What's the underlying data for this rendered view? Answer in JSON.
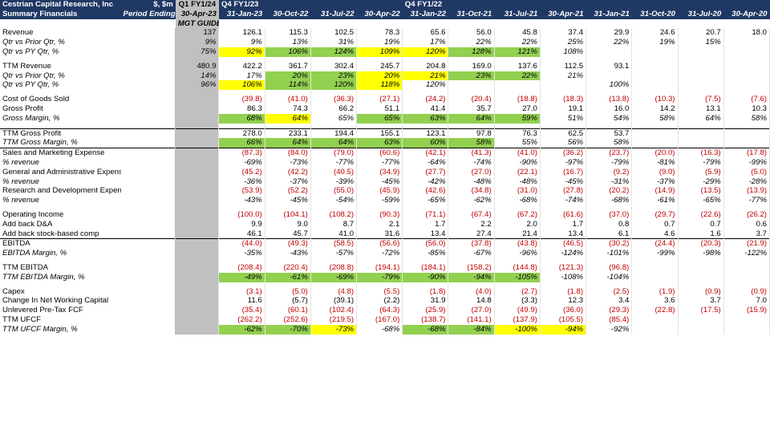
{
  "header": {
    "company": "Cestrian Capital Research, Inc",
    "units": "$, $m",
    "guide_quarter": "Q1 FY1/24",
    "q4_fy23": "Q4 FY1/23",
    "q4_fy22": "Q4 FY1/22",
    "subtitle": "Summary Financials",
    "period_label": "Period Ending",
    "mgt_guide": "MGT GUIDE",
    "dates": [
      "30-Apr-23",
      "31-Jan-23",
      "30-Oct-22",
      "31-Jul-22",
      "30-Apr-22",
      "31-Jan-22",
      "31-Oct-21",
      "31-Jul-21",
      "30-Apr-21",
      "31-Jan-21",
      "31-Oct-20",
      "31-Jul-20",
      "30-Apr-20"
    ]
  },
  "rows": [
    {
      "label": "Revenue",
      "cells": [
        "137",
        "126.1",
        "115.3",
        "102.5",
        "78.3",
        "65.6",
        "56.0",
        "45.8",
        "37.4",
        "29.9",
        "24.6",
        "20.7",
        "18.0"
      ]
    },
    {
      "label": "Qtr vs Prior Qtr, %",
      "italic": true,
      "cells": [
        "9%",
        "9%",
        "13%",
        "31%",
        "19%",
        "17%",
        "22%",
        "22%",
        "25%",
        "22%",
        "19%",
        "15%",
        ""
      ]
    },
    {
      "label": "Qtr vs PY Qtr, %",
      "italic": true,
      "cells": [
        "75%",
        "92%",
        "106%",
        "124%",
        "109%",
        "120%",
        "128%",
        "121%",
        "108%",
        "",
        "",
        "",
        ""
      ],
      "hl": [
        "",
        "y",
        "g",
        "g",
        "y",
        "y",
        "g",
        "g",
        "",
        "",
        "",
        "",
        ""
      ]
    },
    {
      "spacer": true
    },
    {
      "label": "TTM Revenue",
      "cells": [
        "480.9",
        "422.2",
        "361.7",
        "302.4",
        "245.7",
        "204.8",
        "169.0",
        "137.6",
        "112.5",
        "93.1",
        "",
        "",
        ""
      ]
    },
    {
      "label": "Qtr vs Prior Qtr, %",
      "italic": true,
      "cells": [
        "14%",
        "17%",
        "20%",
        "23%",
        "20%",
        "21%",
        "23%",
        "22%",
        "21%",
        "",
        "",
        "",
        ""
      ],
      "hl": [
        "",
        "",
        "g",
        "g",
        "y",
        "y",
        "g",
        "g",
        "",
        "",
        "",
        "",
        ""
      ]
    },
    {
      "label": "Qtr vs PY Qtr, %",
      "italic": true,
      "cells": [
        "96%",
        "106%",
        "114%",
        "120%",
        "118%",
        "120%",
        "",
        "",
        "",
        "100%",
        "",
        "",
        ""
      ],
      "hl": [
        "",
        "y",
        "g",
        "g",
        "y",
        "",
        "",
        "",
        "",
        "",
        "",
        "",
        ""
      ]
    },
    {
      "spacer": true
    },
    {
      "label": "Cost of Goods Sold",
      "cells": [
        "(39.8)",
        "(41.0)",
        "(36.3)",
        "(27.1)",
        "(24.2)",
        "(20.4)",
        "(18.8)",
        "(18.3)",
        "(13.8)",
        "(10.3)",
        "(7.5)",
        "(7.6)"
      ],
      "neg": true,
      "noguide": true
    },
    {
      "label": "Gross Profit",
      "cells": [
        "86.3",
        "74.3",
        "66.2",
        "51.1",
        "41.4",
        "35.7",
        "27.0",
        "19.1",
        "16.0",
        "14.2",
        "13.1",
        "10.3"
      ],
      "noguide": true
    },
    {
      "label": "Gross Margin, %",
      "italic": true,
      "cells": [
        "68%",
        "64%",
        "65%",
        "65%",
        "63%",
        "64%",
        "59%",
        "51%",
        "54%",
        "58%",
        "64%",
        "58%"
      ],
      "hl": [
        "g",
        "y",
        "",
        "g",
        "g",
        "g",
        "g",
        "",
        "",
        "",
        "",
        ""
      ],
      "noguide": true
    },
    {
      "spacer": true
    },
    {
      "label": "TTM Gross Profit",
      "cells": [
        "278.0",
        "233.1",
        "194.4",
        "155.1",
        "123.1",
        "97.8",
        "76.3",
        "62.5",
        "53.7",
        "",
        "",
        ""
      ],
      "noguide": true,
      "top": true
    },
    {
      "label": "TTM Gross Margin, %",
      "italic": true,
      "cells": [
        "66%",
        "64%",
        "64%",
        "63%",
        "60%",
        "58%",
        "55%",
        "56%",
        "58%",
        "",
        "",
        ""
      ],
      "hl": [
        "g",
        "g",
        "g",
        "g",
        "g",
        "g",
        "",
        "",
        "",
        "",
        "",
        ""
      ],
      "noguide": true
    },
    {
      "label": "Sales and Marketing Expense",
      "cells": [
        "(87.3)",
        "(84.0)",
        "(79.0)",
        "(60.6)",
        "(42.1)",
        "(41.3)",
        "(41.0)",
        "(36.2)",
        "(23.7)",
        "(20.0)",
        "(16.3)",
        "(17.8)"
      ],
      "neg": true,
      "noguide": true,
      "top": true
    },
    {
      "label": "% revenue",
      "italic": true,
      "cells": [
        "-69%",
        "-73%",
        "-77%",
        "-77%",
        "-64%",
        "-74%",
        "-90%",
        "-97%",
        "-79%",
        "-81%",
        "-79%",
        "-99%"
      ],
      "noguide": true
    },
    {
      "label": "General and Administrative Expense",
      "cells": [
        "(45.2)",
        "(42.2)",
        "(40.5)",
        "(34.9)",
        "(27.7)",
        "(27.0)",
        "(22.1)",
        "(16.7)",
        "(9.2)",
        "(9.0)",
        "(5.9)",
        "(5.0)"
      ],
      "neg": true,
      "noguide": true
    },
    {
      "label": "% revenue",
      "italic": true,
      "cells": [
        "-36%",
        "-37%",
        "-39%",
        "-45%",
        "-42%",
        "-48%",
        "-48%",
        "-45%",
        "-31%",
        "-37%",
        "-29%",
        "-28%"
      ],
      "noguide": true
    },
    {
      "label": "Research and Development Expense",
      "cells": [
        "(53.9)",
        "(52.2)",
        "(55.0)",
        "(45.9)",
        "(42.6)",
        "(34.8)",
        "(31.0)",
        "(27.8)",
        "(20.2)",
        "(14.9)",
        "(13.5)",
        "(13.9)"
      ],
      "neg": true,
      "noguide": true
    },
    {
      "label": "% revenue",
      "italic": true,
      "cells": [
        "-43%",
        "-45%",
        "-54%",
        "-59%",
        "-65%",
        "-62%",
        "-68%",
        "-74%",
        "-68%",
        "-61%",
        "-65%",
        "-77%"
      ],
      "noguide": true
    },
    {
      "spacer": true
    },
    {
      "label": "Operating Income",
      "cells": [
        "(100.0)",
        "(104.1)",
        "(108.2)",
        "(90.3)",
        "(71.1)",
        "(67.4)",
        "(67.2)",
        "(61.6)",
        "(37.0)",
        "(29.7)",
        "(22.6)",
        "(26.2)"
      ],
      "neg": true,
      "noguide": true
    },
    {
      "label": "Add back D&A",
      "cells": [
        "9.9",
        "9.0",
        "8.7",
        "2.1",
        "1.7",
        "2.2",
        "2.0",
        "1.7",
        "0.8",
        "0.7",
        "0.7",
        "0.6"
      ],
      "noguide": true
    },
    {
      "label": "Add back stock-based comp",
      "cells": [
        "46.1",
        "45.7",
        "41.0",
        "31.6",
        "13.4",
        "27.4",
        "21.4",
        "13.4",
        "6.1",
        "4.6",
        "1.6",
        "3.7"
      ],
      "noguide": true
    },
    {
      "label": "EBITDA",
      "cells": [
        "(44.0)",
        "(49.3)",
        "(58.5)",
        "(56.6)",
        "(56.0)",
        "(37.8)",
        "(43.8)",
        "(46.5)",
        "(30.2)",
        "(24.4)",
        "(20.3)",
        "(21.9)"
      ],
      "neg": true,
      "noguide": true,
      "top": true
    },
    {
      "label": "EBITDA Margin, %",
      "italic": true,
      "cells": [
        "-35%",
        "-43%",
        "-57%",
        "-72%",
        "-85%",
        "-67%",
        "-96%",
        "-124%",
        "-101%",
        "-99%",
        "-98%",
        "-122%"
      ],
      "noguide": true
    },
    {
      "spacer": true
    },
    {
      "label": "TTM EBITDA",
      "cells": [
        "(208.4)",
        "(220.4)",
        "(208.8)",
        "(194.1)",
        "(184.1)",
        "(158.2)",
        "(144.8)",
        "(121.3)",
        "(96.8)",
        "",
        "",
        ""
      ],
      "neg": true,
      "noguide": true
    },
    {
      "label": "TTM EBITDA Margin, %",
      "italic": true,
      "cells": [
        "-49%",
        "-61%",
        "-69%",
        "-79%",
        "-90%",
        "-94%",
        "-105%",
        "-108%",
        "-104%",
        "",
        "",
        ""
      ],
      "hl": [
        "g",
        "g",
        "g",
        "g",
        "g",
        "g",
        "g",
        "",
        "",
        "",
        "",
        ""
      ],
      "noguide": true
    },
    {
      "spacer": true
    },
    {
      "label": "Capex",
      "cells": [
        "(3.1)",
        "(5.0)",
        "(4.8)",
        "(5.5)",
        "(1.8)",
        "(4.0)",
        "(2.7)",
        "(1.8)",
        "(2.5)",
        "(1.9)",
        "(0.9)",
        "(0.9)"
      ],
      "neg": true,
      "noguide": true
    },
    {
      "label": "Change In Net Working Capital",
      "cells": [
        "11.6",
        "(5.7)",
        "(39.1)",
        "(2.2)",
        "31.9",
        "14.8",
        "(3.3)",
        "12.3",
        "3.4",
        "3.6",
        "3.7",
        "7.0"
      ],
      "noguide": true
    },
    {
      "label": "Unlevered Pre-Tax FCF",
      "cells": [
        "(35.4)",
        "(60.1)",
        "(102.4)",
        "(64.3)",
        "(25.9)",
        "(27.0)",
        "(49.9)",
        "(36.0)",
        "(29.3)",
        "(22.8)",
        "(17.5)",
        "(15.9)"
      ],
      "neg": true,
      "noguide": true
    },
    {
      "label": "TTM UFCF",
      "cells": [
        "(262.2)",
        "(252.6)",
        "(219.5)",
        "(167.0)",
        "(138.7)",
        "(141.1)",
        "(137.9)",
        "(105.5)",
        "(85.4)",
        "",
        "",
        ""
      ],
      "neg": true,
      "noguide": true
    },
    {
      "label": "TTM UFCF Margin, %",
      "italic": true,
      "cells": [
        "-62%",
        "-70%",
        "-73%",
        "-68%",
        "-68%",
        "-84%",
        "-100%",
        "-94%",
        "-92%",
        "",
        "",
        ""
      ],
      "hl": [
        "g",
        "g",
        "y",
        "",
        "g",
        "g",
        "y",
        "y",
        "",
        "",
        "",
        ""
      ],
      "noguide": true
    }
  ]
}
